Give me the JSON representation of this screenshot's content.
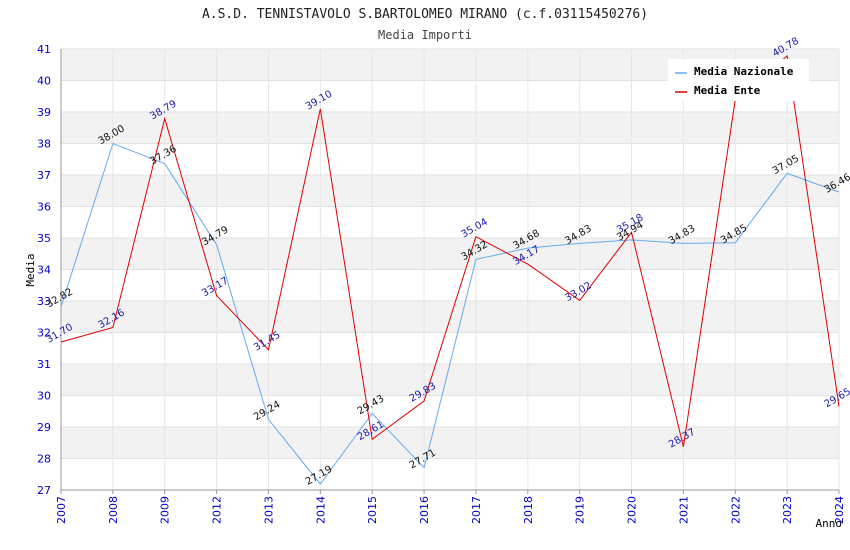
{
  "chart_data": {
    "type": "line",
    "title": "A.S.D. TENNISTAVOLO S.BARTOLOMEO MIRANO (c.f.03115450276)",
    "subtitle": "Media Importi",
    "xlabel": "Anno",
    "ylabel": "Media",
    "ylim": [
      27,
      41
    ],
    "yticks": [
      "27",
      "28",
      "29",
      "30",
      "31",
      "32",
      "33",
      "34",
      "35",
      "36",
      "37",
      "38",
      "39",
      "40",
      "41"
    ],
    "categories": [
      "2007",
      "2008",
      "2009",
      "2012",
      "2013",
      "2014",
      "2015",
      "2016",
      "2017",
      "2018",
      "2019",
      "2020",
      "2021",
      "2022",
      "2023",
      "2024"
    ],
    "grid": true,
    "legend_position": "top-right",
    "series": [
      {
        "name": "Media Nazionale",
        "color": "#66aaee",
        "values": [
          32.82,
          38.0,
          37.36,
          34.79,
          29.24,
          27.19,
          29.43,
          27.71,
          34.32,
          34.68,
          34.83,
          34.94,
          34.83,
          34.85,
          37.05,
          36.46
        ],
        "labels": [
          "32.82",
          "38.00",
          "37.36",
          "34.79",
          "29.24",
          "27.19",
          "29.43",
          "27.71",
          "34.32",
          "34.68",
          "34.83",
          "34.94",
          "34.83",
          "34.85",
          "37.05",
          "36.46"
        ]
      },
      {
        "name": "Media Ente",
        "color": "#dd0000",
        "values": [
          31.7,
          32.16,
          38.79,
          33.17,
          31.45,
          39.1,
          28.61,
          29.83,
          35.04,
          34.17,
          33.02,
          35.18,
          28.37,
          39.4,
          40.78,
          29.65
        ],
        "labels": [
          "31.70",
          "32.16",
          "38.79",
          "33.17",
          "31.45",
          "39.10",
          "28.61",
          "29.83",
          "35.04",
          "34.17",
          "33.02",
          "35.18",
          "28.37",
          "",
          "40.78",
          "29.65"
        ]
      }
    ]
  }
}
